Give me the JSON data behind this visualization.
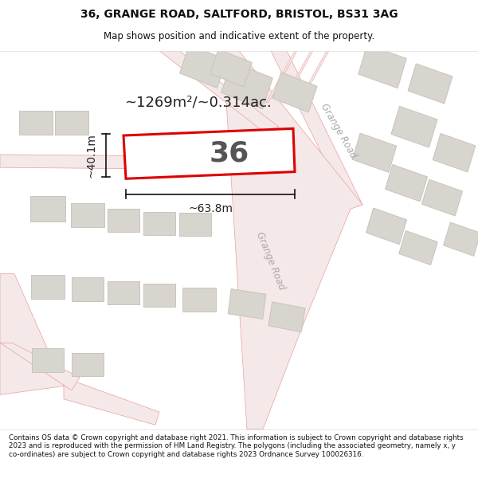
{
  "title": "36, GRANGE ROAD, SALTFORD, BRISTOL, BS31 3AG",
  "subtitle": "Map shows position and indicative extent of the property.",
  "footer": "Contains OS data © Crown copyright and database right 2021. This information is subject to Crown copyright and database rights 2023 and is reproduced with the permission of HM Land Registry. The polygons (including the associated geometry, namely x, y co-ordinates) are subject to Crown copyright and database rights 2023 Ordnance Survey 100026316.",
  "map_bg": "#ffffff",
  "road_line_color": "#e8a0a0",
  "road_fill_color": "#f5e8e8",
  "building_fill": "#d8d4ce",
  "building_stroke": "#c8c4be",
  "highlight_fill": "#ffffff",
  "highlight_stroke": "#dd0000",
  "label_color": "#333333",
  "road_label_color": "#aaaaaa",
  "dim_color": "#111111",
  "label_36": "36",
  "area_label": "~1269m²/~0.314ac.",
  "dim_width": "~63.8m",
  "dim_height": "~40.1m",
  "road_label": "Grange Road"
}
